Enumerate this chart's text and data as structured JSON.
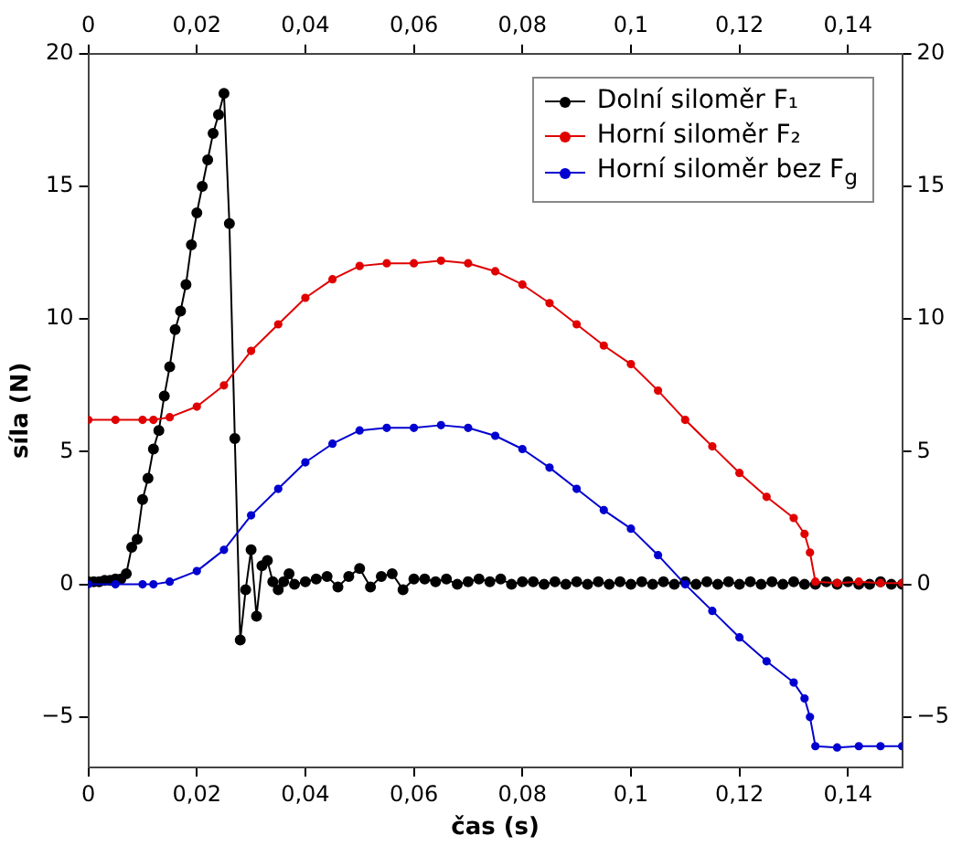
{
  "chart_data": {
    "type": "line",
    "xlabel": "čas (s)",
    "ylabel": "síla (N)",
    "xlim": [
      0,
      0.15
    ],
    "xticks": [
      0,
      {
        "value": 0.02,
        "label": "0,02"
      },
      {
        "value": 0.04,
        "label": "0,04"
      },
      {
        "value": 0.06,
        "label": "0,06"
      },
      {
        "value": 0.08,
        "label": "0,08"
      },
      {
        "value": 0.1,
        "label": "0,1"
      },
      {
        "value": 0.12,
        "label": "0,12"
      },
      {
        "value": 0.14,
        "label": "0,14"
      }
    ],
    "x2lim": [
      0,
      0.15
    ],
    "x2ticks": [
      0,
      {
        "value": 0.02,
        "label": "0,02"
      },
      {
        "value": 0.04,
        "label": "0,04"
      },
      {
        "value": 0.06,
        "label": "0,06"
      },
      {
        "value": 0.08,
        "label": "0,08"
      },
      {
        "value": 0.1,
        "label": "0,1"
      },
      {
        "value": 0.12,
        "label": "0,12"
      },
      {
        "value": 0.14,
        "label": "0,14"
      }
    ],
    "ylim": [
      -6.9,
      20
    ],
    "yticks": [
      {
        "value": -5,
        "label": "−5"
      },
      0,
      5,
      10,
      15,
      20
    ],
    "y2lim": [
      -6.9,
      20
    ],
    "y2ticks": [
      {
        "value": -5,
        "label": "−5"
      },
      0,
      5,
      10,
      15,
      20
    ],
    "grid": false,
    "legend": "top right",
    "marker": "circle",
    "line_style": "solid",
    "series": [
      {
        "name": "Dolní siloměr F₁",
        "color": "#000000",
        "x": [
          0,
          0.001,
          0.002,
          0.003,
          0.004,
          0.005,
          0.006,
          0.007,
          0.008,
          0.009,
          0.01,
          0.011,
          0.012,
          0.013,
          0.014,
          0.015,
          0.016,
          0.017,
          0.018,
          0.019,
          0.02,
          0.021,
          0.022,
          0.023,
          0.024,
          0.025,
          0.026,
          0.027,
          0.028,
          0.029,
          0.03,
          0.031,
          0.032,
          0.033,
          0.034,
          0.035,
          0.036,
          0.037,
          0.038,
          0.04,
          0.042,
          0.044,
          0.046,
          0.048,
          0.05,
          0.052,
          0.054,
          0.056,
          0.058,
          0.06,
          0.062,
          0.064,
          0.066,
          0.068,
          0.07,
          0.072,
          0.074,
          0.076,
          0.078,
          0.08,
          0.082,
          0.084,
          0.086,
          0.088,
          0.09,
          0.092,
          0.094,
          0.096,
          0.098,
          0.1,
          0.102,
          0.104,
          0.106,
          0.108,
          0.11,
          0.112,
          0.114,
          0.116,
          0.118,
          0.12,
          0.122,
          0.124,
          0.126,
          0.128,
          0.13,
          0.132,
          0.134,
          0.136,
          0.138,
          0.14,
          0.142,
          0.144,
          0.146,
          0.148,
          0.15
        ],
        "values": [
          0.1,
          0.1,
          0.1,
          0.15,
          0.15,
          0.2,
          0.2,
          0.4,
          1.4,
          1.7,
          3.2,
          4,
          5.1,
          5.8,
          7.1,
          8.2,
          9.6,
          10.3,
          11.3,
          12.8,
          14,
          15,
          16,
          17,
          17.7,
          18.5,
          13.6,
          5.5,
          -2.1,
          -0.2,
          1.3,
          -1.2,
          0.7,
          0.9,
          0.1,
          -0.2,
          0.1,
          0.4,
          0,
          0.1,
          0.2,
          0.3,
          -0.1,
          0.3,
          0.6,
          -0.1,
          0.3,
          0.4,
          -0.2,
          0.2,
          0.2,
          0.1,
          0.2,
          0,
          0.1,
          0.2,
          0.1,
          0.2,
          0,
          0.1,
          0.1,
          0,
          0.1,
          0,
          0.1,
          0,
          0.1,
          0,
          0.1,
          0,
          0.1,
          0,
          0.1,
          0,
          0.1,
          0,
          0.1,
          0,
          0.1,
          0,
          0.1,
          0,
          0.1,
          0,
          0.1,
          0,
          0,
          0.1,
          0,
          0.1,
          0,
          0,
          0.1,
          0,
          0
        ]
      },
      {
        "name": "Horní siloměr F₂",
        "color": "#e00000",
        "x": [
          0,
          0.005,
          0.01,
          0.012,
          0.015,
          0.02,
          0.025,
          0.03,
          0.035,
          0.04,
          0.045,
          0.05,
          0.055,
          0.06,
          0.065,
          0.07,
          0.075,
          0.08,
          0.085,
          0.09,
          0.095,
          0.1,
          0.105,
          0.11,
          0.115,
          0.12,
          0.125,
          0.13,
          0.132,
          0.133,
          0.134,
          0.138,
          0.142,
          0.146,
          0.15
        ],
        "values": [
          6.2,
          6.2,
          6.2,
          6.2,
          6.3,
          6.7,
          7.5,
          8.8,
          9.8,
          10.8,
          11.5,
          12,
          12.1,
          12.1,
          12.2,
          12.1,
          11.8,
          11.3,
          10.6,
          9.8,
          9,
          8.3,
          7.3,
          6.2,
          5.2,
          4.2,
          3.3,
          2.5,
          1.9,
          1.2,
          0.1,
          0.05,
          0.1,
          0.05,
          0.05
        ]
      },
      {
        "name": "Horní siloměr bez F$_{g}$",
        "color": "#0000d0",
        "x": [
          0,
          0.005,
          0.01,
          0.012,
          0.015,
          0.02,
          0.025,
          0.03,
          0.035,
          0.04,
          0.045,
          0.05,
          0.055,
          0.06,
          0.065,
          0.07,
          0.075,
          0.08,
          0.085,
          0.09,
          0.095,
          0.1,
          0.105,
          0.11,
          0.115,
          0.12,
          0.125,
          0.13,
          0.132,
          0.133,
          0.134,
          0.138,
          0.142,
          0.146,
          0.15
        ],
        "values": [
          0,
          0,
          0,
          0,
          0.1,
          0.5,
          1.3,
          2.6,
          3.6,
          4.6,
          5.3,
          5.8,
          5.9,
          5.9,
          6,
          5.9,
          5.6,
          5.1,
          4.4,
          3.6,
          2.8,
          2.1,
          1.1,
          0,
          -1,
          -2,
          -2.9,
          -3.7,
          -4.3,
          -5,
          -6.1,
          -6.15,
          -6.1,
          -6.1,
          -6.1
        ]
      }
    ]
  }
}
